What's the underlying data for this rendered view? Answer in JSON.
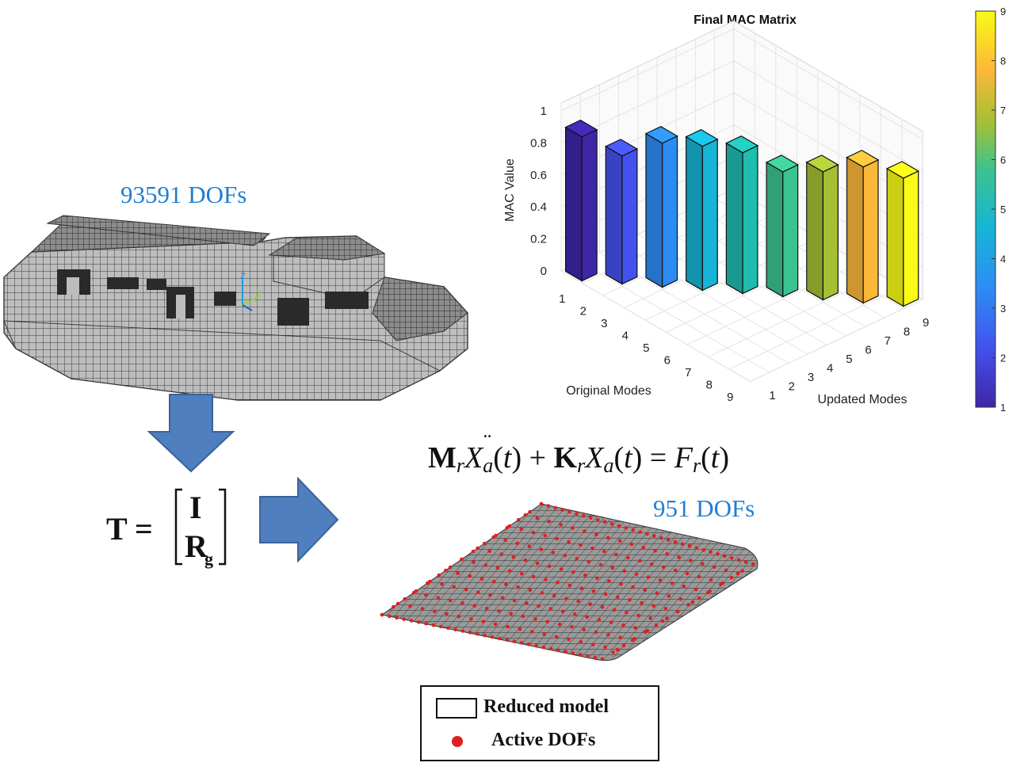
{
  "labels": {
    "full_dofs": "93591 DOFs",
    "reduced_dofs": "951 DOFs"
  },
  "equation": {
    "motion": "M r Ẍ a (t) + K r X a (t) = F r (t)",
    "transform_lhs": "T =",
    "transform_row1": "I",
    "transform_row2": "R",
    "transform_row2_sub": "g"
  },
  "axis_triad": {
    "z": "Z",
    "y": "Y"
  },
  "legend": {
    "items": [
      "Reduced model",
      "Active DOFs"
    ]
  },
  "chart_data": {
    "type": "bar3d",
    "title": "Final MAC Matrix",
    "zlabel": "MAC Value",
    "xlabel": "Original Modes",
    "ylabel": "Updated Modes",
    "x_categories": [
      "1",
      "2",
      "3",
      "4",
      "5",
      "6",
      "7",
      "8",
      "9"
    ],
    "y_categories": [
      "1",
      "2",
      "3",
      "4",
      "5",
      "6",
      "7",
      "8",
      "9"
    ],
    "zlim": [
      0,
      1
    ],
    "zticks": [
      "0",
      "0.2",
      "0.4",
      "0.6",
      "0.8",
      "1"
    ],
    "diagonal_values": [
      0.9,
      0.8,
      0.9,
      0.9,
      0.88,
      0.78,
      0.8,
      0.85,
      0.8
    ],
    "colorbar": {
      "min": 1,
      "max": 9,
      "ticks": [
        "1",
        "2",
        "3",
        "4",
        "5",
        "6",
        "7",
        "8",
        "9"
      ]
    },
    "colormap": "parula",
    "grid": true
  },
  "colors": {
    "dof_label": "#1f7fd4",
    "arrow_fill": "#4f7fbf",
    "arrow_stroke": "#3a6499",
    "active_dof": "#e02020",
    "mesh": "#8a8a8a"
  }
}
